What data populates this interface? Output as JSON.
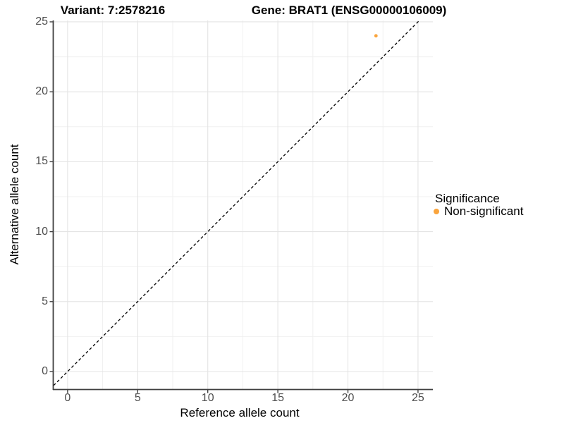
{
  "chart_data": {
    "type": "scatter",
    "titles": {
      "variant": "Variant: 7:2578216",
      "gene": "Gene: BRAT1 (ENSG00000106009)"
    },
    "xlabel": "Reference allele count",
    "ylabel": "Alternative allele count",
    "xlim": [
      -1.0,
      26.06
    ],
    "ylim": [
      -1.26,
      25.1
    ],
    "x_ticks": [
      0,
      5,
      10,
      15,
      20,
      25
    ],
    "y_ticks": [
      0,
      5,
      10,
      15,
      20,
      25
    ],
    "x_minor_ticks": [
      2.5,
      7.5,
      12.5,
      17.5,
      22.5
    ],
    "y_minor_ticks": [
      2.5,
      7.5,
      12.5,
      17.5,
      22.5
    ],
    "grid": true,
    "series": [
      {
        "name": "Non-significant",
        "color": "#FAA43C",
        "points": [
          {
            "x": 22,
            "y": 24
          }
        ]
      }
    ],
    "reference_line": {
      "type": "abline",
      "slope": 1,
      "intercept": 0,
      "style": "dashed",
      "color": "#000000"
    },
    "legend": {
      "position": "right",
      "title": "Significance",
      "items": [
        {
          "label": "Non-significant",
          "color": "#FAA43C",
          "marker": "circle-icon"
        }
      ]
    },
    "colors": {
      "background": "#ffffff",
      "grid_major": "#e4e4e4",
      "grid_minor": "#f0f0f0",
      "axis_line": "#3f3f3f",
      "tick_mark": "#3f3f3f",
      "tick_label": "#4d4d4d",
      "text": "#000000",
      "point": "#FAA43C"
    }
  }
}
